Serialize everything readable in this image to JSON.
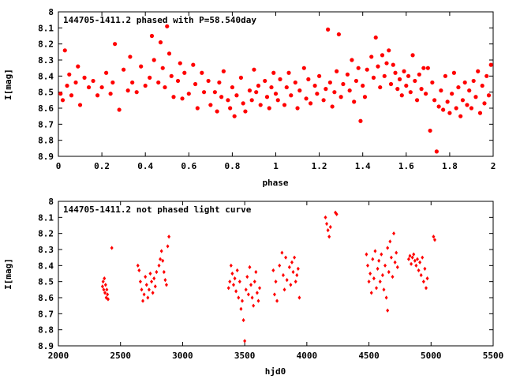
{
  "chart_data": [
    {
      "type": "scatter",
      "title": "144705-1411.2 phased with P=58.540day",
      "xlabel": "phase",
      "ylabel": "I[mag]",
      "xlim": [
        0,
        2
      ],
      "ylim": [
        8.9,
        8.0
      ],
      "y_inverted": true,
      "xticks": [
        "0",
        "0.2",
        "0.4",
        "0.6",
        "0.8",
        "1",
        "1.2",
        "1.4",
        "1.6",
        "1.8",
        "2"
      ],
      "yticks": [
        "8",
        "8.1",
        "8.2",
        "8.3",
        "8.4",
        "8.5",
        "8.6",
        "8.7",
        "8.8",
        "8.9"
      ],
      "marker_color": "#ff0000",
      "grid": false,
      "points": [
        [
          0.01,
          8.51
        ],
        [
          0.02,
          8.55
        ],
        [
          0.03,
          8.24
        ],
        [
          0.04,
          8.46
        ],
        [
          0.05,
          8.39
        ],
        [
          0.06,
          8.52
        ],
        [
          0.08,
          8.44
        ],
        [
          0.09,
          8.34
        ],
        [
          0.1,
          8.58
        ],
        [
          0.12,
          8.41
        ],
        [
          0.14,
          8.47
        ],
        [
          0.16,
          8.43
        ],
        [
          0.18,
          8.52
        ],
        [
          0.2,
          8.47
        ],
        [
          0.22,
          8.38
        ],
        [
          0.24,
          8.51
        ],
        [
          0.25,
          8.44
        ],
        [
          0.26,
          8.2
        ],
        [
          0.28,
          8.61
        ],
        [
          0.3,
          8.36
        ],
        [
          0.32,
          8.49
        ],
        [
          0.33,
          8.28
        ],
        [
          0.34,
          8.44
        ],
        [
          0.36,
          8.5
        ],
        [
          0.38,
          8.34
        ],
        [
          0.4,
          8.46
        ],
        [
          0.42,
          8.41
        ],
        [
          0.43,
          8.15
        ],
        [
          0.44,
          8.3
        ],
        [
          0.46,
          8.44
        ],
        [
          0.47,
          8.19
        ],
        [
          0.48,
          8.35
        ],
        [
          0.49,
          8.47
        ],
        [
          0.5,
          8.09
        ],
        [
          0.51,
          8.26
        ],
        [
          0.52,
          8.4
        ],
        [
          0.53,
          8.53
        ],
        [
          0.55,
          8.43
        ],
        [
          0.56,
          8.32
        ],
        [
          0.57,
          8.54
        ],
        [
          0.58,
          8.38
        ],
        [
          0.6,
          8.51
        ],
        [
          0.62,
          8.33
        ],
        [
          0.63,
          8.45
        ],
        [
          0.64,
          8.6
        ],
        [
          0.66,
          8.38
        ],
        [
          0.67,
          8.5
        ],
        [
          0.69,
          8.43
        ],
        [
          0.7,
          8.58
        ],
        [
          0.72,
          8.5
        ],
        [
          0.73,
          8.62
        ],
        [
          0.74,
          8.44
        ],
        [
          0.75,
          8.53
        ],
        [
          0.76,
          8.37
        ],
        [
          0.78,
          8.55
        ],
        [
          0.79,
          8.6
        ],
        [
          0.8,
          8.47
        ],
        [
          0.81,
          8.65
        ],
        [
          0.82,
          8.52
        ],
        [
          0.84,
          8.41
        ],
        [
          0.85,
          8.57
        ],
        [
          0.86,
          8.62
        ],
        [
          0.88,
          8.49
        ],
        [
          0.89,
          8.55
        ],
        [
          0.9,
          8.36
        ],
        [
          0.91,
          8.5
        ],
        [
          0.92,
          8.46
        ],
        [
          0.93,
          8.58
        ],
        [
          0.95,
          8.43
        ],
        [
          0.96,
          8.53
        ],
        [
          0.97,
          8.6
        ],
        [
          0.98,
          8.47
        ],
        [
          0.99,
          8.38
        ],
        [
          1.0,
          8.51
        ],
        [
          1.01,
          8.55
        ],
        [
          1.02,
          8.42
        ],
        [
          1.04,
          8.58
        ],
        [
          1.05,
          8.47
        ],
        [
          1.06,
          8.38
        ],
        [
          1.07,
          8.52
        ],
        [
          1.09,
          8.44
        ],
        [
          1.1,
          8.6
        ],
        [
          1.11,
          8.49
        ],
        [
          1.13,
          8.35
        ],
        [
          1.14,
          8.54
        ],
        [
          1.15,
          8.42
        ],
        [
          1.16,
          8.57
        ],
        [
          1.18,
          8.46
        ],
        [
          1.19,
          8.51
        ],
        [
          1.2,
          8.4
        ],
        [
          1.22,
          8.55
        ],
        [
          1.23,
          8.48
        ],
        [
          1.24,
          8.11
        ],
        [
          1.25,
          8.44
        ],
        [
          1.26,
          8.59
        ],
        [
          1.27,
          8.5
        ],
        [
          1.28,
          8.37
        ],
        [
          1.29,
          8.14
        ],
        [
          1.3,
          8.53
        ],
        [
          1.31,
          8.45
        ],
        [
          1.33,
          8.39
        ],
        [
          1.34,
          8.49
        ],
        [
          1.35,
          8.3
        ],
        [
          1.36,
          8.56
        ],
        [
          1.37,
          8.43
        ],
        [
          1.38,
          8.35
        ],
        [
          1.39,
          8.68
        ],
        [
          1.4,
          8.46
        ],
        [
          1.41,
          8.53
        ],
        [
          1.42,
          8.36
        ],
        [
          1.44,
          8.28
        ],
        [
          1.45,
          8.41
        ],
        [
          1.46,
          8.16
        ],
        [
          1.47,
          8.34
        ],
        [
          1.48,
          8.47
        ],
        [
          1.49,
          8.27
        ],
        [
          1.5,
          8.4
        ],
        [
          1.51,
          8.32
        ],
        [
          1.52,
          8.24
        ],
        [
          1.53,
          8.45
        ],
        [
          1.54,
          8.33
        ],
        [
          1.55,
          8.38
        ],
        [
          1.56,
          8.48
        ],
        [
          1.57,
          8.42
        ],
        [
          1.58,
          8.52
        ],
        [
          1.59,
          8.37
        ],
        [
          1.6,
          8.46
        ],
        [
          1.61,
          8.4
        ],
        [
          1.62,
          8.5
        ],
        [
          1.63,
          8.27
        ],
        [
          1.64,
          8.43
        ],
        [
          1.65,
          8.55
        ],
        [
          1.66,
          8.39
        ],
        [
          1.67,
          8.48
        ],
        [
          1.68,
          8.35
        ],
        [
          1.69,
          8.51
        ],
        [
          1.7,
          8.35
        ],
        [
          1.71,
          8.74
        ],
        [
          1.72,
          8.44
        ],
        [
          1.73,
          8.55
        ],
        [
          1.74,
          8.87
        ],
        [
          1.75,
          8.59
        ],
        [
          1.76,
          8.49
        ],
        [
          1.77,
          8.61
        ],
        [
          1.78,
          8.4
        ],
        [
          1.79,
          8.56
        ],
        [
          1.8,
          8.63
        ],
        [
          1.81,
          8.51
        ],
        [
          1.82,
          8.38
        ],
        [
          1.83,
          8.6
        ],
        [
          1.84,
          8.47
        ],
        [
          1.85,
          8.65
        ],
        [
          1.86,
          8.55
        ],
        [
          1.87,
          8.44
        ],
        [
          1.88,
          8.58
        ],
        [
          1.89,
          8.49
        ],
        [
          1.9,
          8.6
        ],
        [
          1.91,
          8.43
        ],
        [
          1.92,
          8.53
        ],
        [
          1.93,
          8.37
        ],
        [
          1.94,
          8.63
        ],
        [
          1.95,
          8.46
        ],
        [
          1.96,
          8.57
        ],
        [
          1.97,
          8.4
        ],
        [
          1.98,
          8.52
        ],
        [
          1.99,
          8.33
        ]
      ]
    },
    {
      "type": "scatter",
      "title": "144705-1411.2 not phased light curve",
      "xlabel": "hjd0",
      "ylabel": "I[mag]",
      "xlim": [
        2000,
        5500
      ],
      "ylim": [
        8.9,
        8.0
      ],
      "y_inverted": true,
      "xticks": [
        "2000",
        "2500",
        "3000",
        "3500",
        "4000",
        "4500",
        "5000",
        "5500"
      ],
      "yticks": [
        "8",
        "8.1",
        "8.2",
        "8.3",
        "8.4",
        "8.5",
        "8.6",
        "8.7",
        "8.8",
        "8.9"
      ],
      "marker_color": "#ff0000",
      "grid": false,
      "points": [
        [
          2355,
          8.53
        ],
        [
          2360,
          8.5
        ],
        [
          2365,
          8.55
        ],
        [
          2370,
          8.48
        ],
        [
          2375,
          8.57
        ],
        [
          2380,
          8.52
        ],
        [
          2385,
          8.6
        ],
        [
          2390,
          8.55
        ],
        [
          2395,
          8.58
        ],
        [
          2400,
          8.61
        ],
        [
          2430,
          8.29
        ],
        [
          2640,
          8.4
        ],
        [
          2650,
          8.43
        ],
        [
          2660,
          8.5
        ],
        [
          2670,
          8.55
        ],
        [
          2680,
          8.62
        ],
        [
          2690,
          8.58
        ],
        [
          2700,
          8.47
        ],
        [
          2710,
          8.52
        ],
        [
          2720,
          8.6
        ],
        [
          2730,
          8.55
        ],
        [
          2740,
          8.45
        ],
        [
          2750,
          8.5
        ],
        [
          2760,
          8.57
        ],
        [
          2770,
          8.48
        ],
        [
          2780,
          8.53
        ],
        [
          2790,
          8.44
        ],
        [
          2810,
          8.4
        ],
        [
          2820,
          8.36
        ],
        [
          2830,
          8.31
        ],
        [
          2840,
          8.37
        ],
        [
          2850,
          8.44
        ],
        [
          2860,
          8.49
        ],
        [
          2870,
          8.52
        ],
        [
          2880,
          8.28
        ],
        [
          2890,
          8.22
        ],
        [
          3370,
          8.54
        ],
        [
          3380,
          8.5
        ],
        [
          3390,
          8.4
        ],
        [
          3400,
          8.45
        ],
        [
          3410,
          8.52
        ],
        [
          3420,
          8.48
        ],
        [
          3430,
          8.56
        ],
        [
          3440,
          8.43
        ],
        [
          3450,
          8.6
        ],
        [
          3460,
          8.5
        ],
        [
          3470,
          8.67
        ],
        [
          3480,
          8.62
        ],
        [
          3490,
          8.74
        ],
        [
          3500,
          8.87
        ],
        [
          3510,
          8.55
        ],
        [
          3520,
          8.47
        ],
        [
          3530,
          8.58
        ],
        [
          3540,
          8.41
        ],
        [
          3550,
          8.52
        ],
        [
          3560,
          8.6
        ],
        [
          3570,
          8.65
        ],
        [
          3580,
          8.5
        ],
        [
          3590,
          8.44
        ],
        [
          3600,
          8.57
        ],
        [
          3610,
          8.62
        ],
        [
          3620,
          8.54
        ],
        [
          3730,
          8.43
        ],
        [
          3740,
          8.58
        ],
        [
          3750,
          8.5
        ],
        [
          3760,
          8.62
        ],
        [
          3780,
          8.4
        ],
        [
          3800,
          8.32
        ],
        [
          3810,
          8.46
        ],
        [
          3820,
          8.55
        ],
        [
          3830,
          8.35
        ],
        [
          3840,
          8.49
        ],
        [
          3860,
          8.41
        ],
        [
          3870,
          8.52
        ],
        [
          3880,
          8.38
        ],
        [
          3890,
          8.44
        ],
        [
          3900,
          8.35
        ],
        [
          3910,
          8.5
        ],
        [
          3920,
          8.46
        ],
        [
          3930,
          8.42
        ],
        [
          3940,
          8.6
        ],
        [
          4150,
          8.1
        ],
        [
          4160,
          8.14
        ],
        [
          4170,
          8.18
        ],
        [
          4180,
          8.22
        ],
        [
          4190,
          8.16
        ],
        [
          4230,
          8.07
        ],
        [
          4240,
          8.08
        ],
        [
          4480,
          8.33
        ],
        [
          4490,
          8.4
        ],
        [
          4500,
          8.5
        ],
        [
          4510,
          8.45
        ],
        [
          4520,
          8.57
        ],
        [
          4530,
          8.36
        ],
        [
          4540,
          8.48
        ],
        [
          4550,
          8.31
        ],
        [
          4560,
          8.54
        ],
        [
          4570,
          8.42
        ],
        [
          4580,
          8.37
        ],
        [
          4590,
          8.5
        ],
        [
          4600,
          8.33
        ],
        [
          4610,
          8.46
        ],
        [
          4620,
          8.55
        ],
        [
          4630,
          8.4
        ],
        [
          4640,
          8.6
        ],
        [
          4650,
          8.29
        ],
        [
          4660,
          8.44
        ],
        [
          4670,
          8.25
        ],
        [
          4680,
          8.35
        ],
        [
          4690,
          8.47
        ],
        [
          4700,
          8.2
        ],
        [
          4710,
          8.38
        ],
        [
          4720,
          8.32
        ],
        [
          4730,
          8.41
        ],
        [
          4650,
          8.68
        ],
        [
          4820,
          8.36
        ],
        [
          4830,
          8.34
        ],
        [
          4840,
          8.39
        ],
        [
          4850,
          8.35
        ],
        [
          4860,
          8.33
        ],
        [
          4870,
          8.37
        ],
        [
          4880,
          8.4
        ],
        [
          4890,
          8.36
        ],
        [
          4900,
          8.43
        ],
        [
          4910,
          8.38
        ],
        [
          4920,
          8.46
        ],
        [
          4930,
          8.35
        ],
        [
          4940,
          8.5
        ],
        [
          4950,
          8.42
        ],
        [
          4960,
          8.54
        ],
        [
          4970,
          8.48
        ],
        [
          5020,
          8.22
        ],
        [
          5030,
          8.24
        ]
      ]
    }
  ]
}
